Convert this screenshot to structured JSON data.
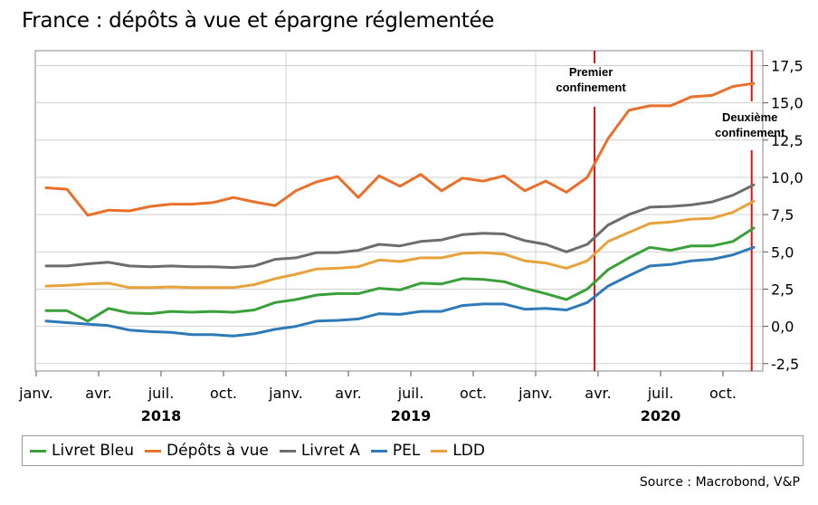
{
  "title": "France : dépôts à vue et épargne réglementée",
  "source": "Source : Macrobond, V&P",
  "chart_data": {
    "type": "line",
    "title": "France : dépôts à vue et épargne réglementée",
    "ylim": [
      -3.0,
      18.5
    ],
    "yticks": [
      "17,5",
      "15,0",
      "12,5",
      "10,0",
      "7,5",
      "5,0",
      "2,5",
      "0,0",
      "-2,5"
    ],
    "ytick_values": [
      17.5,
      15.0,
      12.5,
      10.0,
      7.5,
      5.0,
      2.5,
      0.0,
      -2.5
    ],
    "xlim": [
      0,
      35.6
    ],
    "xticks": [
      {
        "label": "janv.",
        "index": 0
      },
      {
        "label": "avr.",
        "index": 3
      },
      {
        "label": "juil.",
        "index": 6
      },
      {
        "label": "oct.",
        "index": 9
      },
      {
        "label": "janv.",
        "index": 12
      },
      {
        "label": "avr.",
        "index": 15
      },
      {
        "label": "juil.",
        "index": 18
      },
      {
        "label": "oct.",
        "index": 21
      },
      {
        "label": "janv.",
        "index": 24
      },
      {
        "label": "avr.",
        "index": 27
      },
      {
        "label": "juil.",
        "index": 30
      },
      {
        "label": "oct.",
        "index": 33
      }
    ],
    "years": [
      {
        "label": "2018",
        "index": 6
      },
      {
        "label": "2019",
        "index": 18
      },
      {
        "label": "2020",
        "index": 30
      }
    ],
    "x_start": "2018-01",
    "series": [
      {
        "name": "Livret Bleu",
        "color": "#3aa03a",
        "values": [
          1.05,
          1.05,
          0.35,
          1.2,
          0.9,
          0.85,
          1.0,
          0.95,
          1.0,
          0.95,
          1.1,
          1.6,
          1.8,
          2.1,
          2.2,
          2.2,
          2.55,
          2.45,
          2.9,
          2.85,
          3.2,
          3.15,
          3.0,
          2.55,
          2.2,
          1.8,
          2.5,
          3.8,
          4.6,
          5.3,
          5.1,
          5.4,
          5.4,
          5.7,
          6.6
        ]
      },
      {
        "name": "Dépôts à vue",
        "color": "#e8702a",
        "values": [
          9.3,
          9.2,
          7.45,
          7.8,
          7.75,
          8.05,
          8.2,
          8.2,
          8.3,
          8.65,
          8.35,
          8.1,
          9.1,
          9.7,
          10.05,
          8.65,
          10.1,
          9.4,
          10.2,
          9.1,
          9.95,
          9.75,
          10.1,
          9.1,
          9.75,
          9.0,
          10.0,
          12.6,
          14.5,
          14.8,
          14.8,
          15.4,
          15.5,
          16.1,
          16.3
        ]
      },
      {
        "name": "Livret A",
        "color": "#6d6d6d",
        "values": [
          4.05,
          4.05,
          4.2,
          4.3,
          4.05,
          4.0,
          4.05,
          4.0,
          4.0,
          3.95,
          4.05,
          4.5,
          4.6,
          4.95,
          4.95,
          5.1,
          5.5,
          5.4,
          5.7,
          5.8,
          6.15,
          6.25,
          6.2,
          5.75,
          5.5,
          5.0,
          5.5,
          6.8,
          7.5,
          8.0,
          8.05,
          8.15,
          8.35,
          8.8,
          9.5
        ]
      },
      {
        "name": "PEL",
        "color": "#2e7ab8",
        "values": [
          0.35,
          0.25,
          0.15,
          0.05,
          -0.25,
          -0.35,
          -0.4,
          -0.55,
          -0.55,
          -0.65,
          -0.5,
          -0.2,
          0.0,
          0.35,
          0.4,
          0.5,
          0.85,
          0.8,
          1.0,
          1.0,
          1.4,
          1.5,
          1.5,
          1.15,
          1.2,
          1.1,
          1.6,
          2.7,
          3.4,
          4.05,
          4.15,
          4.4,
          4.5,
          4.8,
          5.3
        ]
      },
      {
        "name": "LDD",
        "color": "#e8a23c",
        "values": [
          2.7,
          2.75,
          2.85,
          2.9,
          2.6,
          2.6,
          2.65,
          2.6,
          2.6,
          2.6,
          2.8,
          3.2,
          3.5,
          3.85,
          3.9,
          4.0,
          4.45,
          4.35,
          4.6,
          4.6,
          4.9,
          4.95,
          4.85,
          4.4,
          4.25,
          3.9,
          4.4,
          5.7,
          6.3,
          6.9,
          7.0,
          7.2,
          7.25,
          7.65,
          8.4
        ]
      }
    ],
    "annotations": [
      {
        "label_lines": [
          "Premier",
          "confinement"
        ],
        "x_index": 26.35,
        "color": "#e01010"
      },
      {
        "label_lines": [
          "Deuxième",
          "confinement"
        ],
        "x_index": 33.9,
        "color": "#e01010"
      }
    ],
    "legend_position": "bottom"
  }
}
